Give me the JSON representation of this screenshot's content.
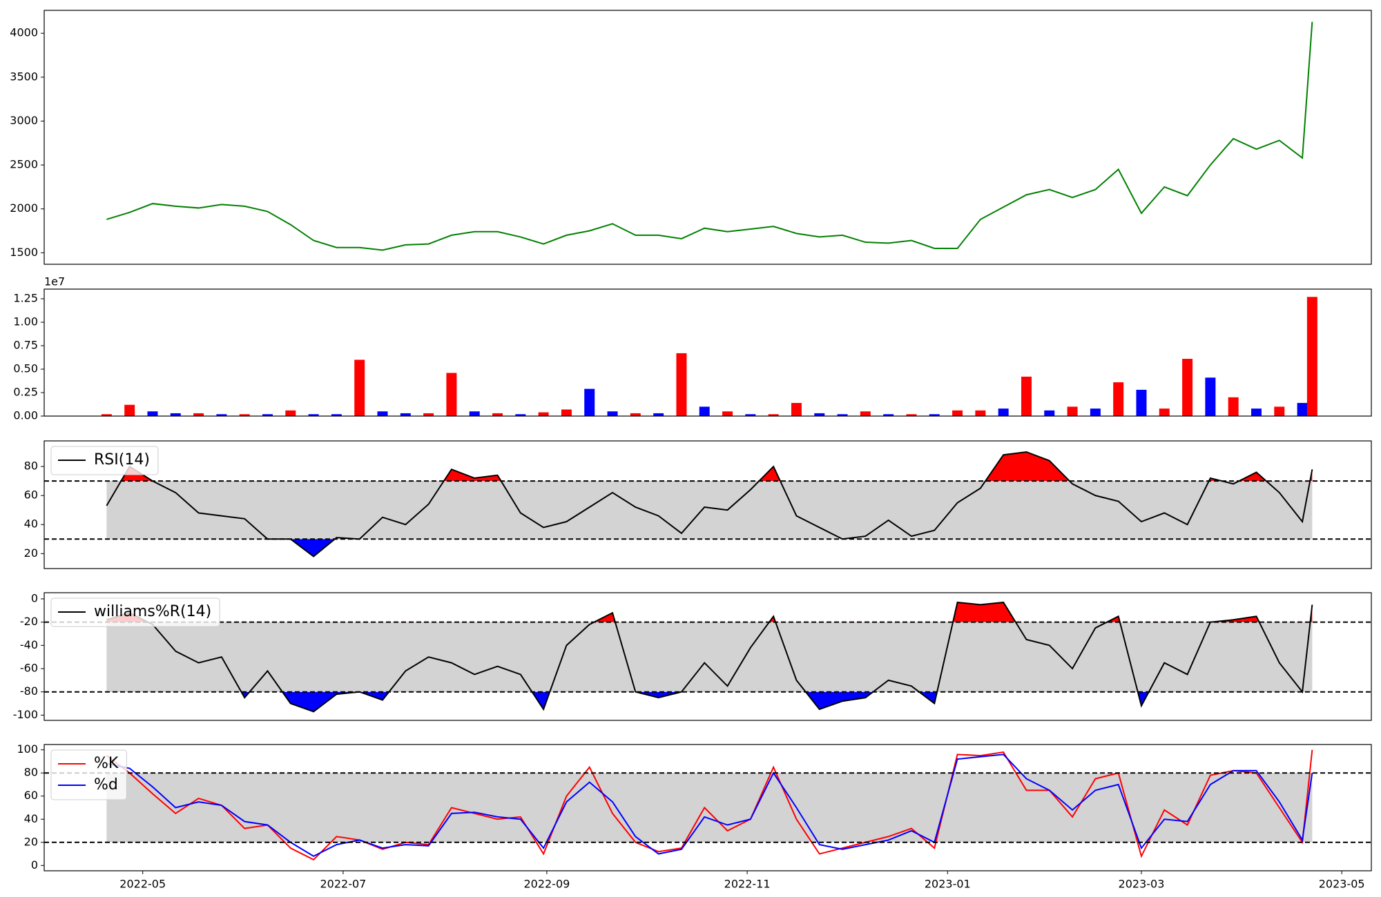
{
  "chart_data": [
    {
      "type": "line",
      "xlim": [
        0,
        404
      ],
      "ylim": [
        1369,
        4261
      ],
      "yticks": [
        1500,
        2000,
        2500,
        3000,
        3500,
        4000
      ],
      "x": [
        19,
        26,
        33,
        40,
        47,
        54,
        61,
        68,
        75,
        82,
        89,
        96,
        103,
        110,
        117,
        124,
        131,
        138,
        145,
        152,
        159,
        166,
        173,
        180,
        187,
        194,
        201,
        208,
        215,
        222,
        229,
        236,
        243,
        250,
        257,
        264,
        271,
        278,
        285,
        292,
        299,
        306,
        313,
        320,
        327,
        334,
        341,
        348,
        355,
        362,
        369,
        376,
        383,
        386
      ],
      "series": [
        {
          "color": "#008000",
          "values": [
            1880,
            1960,
            2060,
            2030,
            2010,
            2050,
            2030,
            1970,
            1820,
            1640,
            1560,
            1560,
            1530,
            1590,
            1600,
            1700,
            1740,
            1740,
            1680,
            1600,
            1700,
            1750,
            1830,
            1700,
            1700,
            1660,
            1780,
            1740,
            1770,
            1800,
            1720,
            1680,
            1700,
            1620,
            1610,
            1640,
            1550,
            1550,
            1880,
            2020,
            2160,
            2220,
            2130,
            2220,
            2450,
            1950,
            2250,
            2150,
            2500,
            2800,
            2680,
            2780,
            2580,
            4130
          ]
        }
      ]
    },
    {
      "type": "bar",
      "xlim": [
        0,
        404
      ],
      "ylim": [
        0,
        1.353
      ],
      "offset_label": "1e7",
      "yticks": [
        {
          "value": 0,
          "label": "0.00"
        },
        {
          "value": 0.25,
          "label": "0.25"
        },
        {
          "value": 0.5,
          "label": "0.50"
        },
        {
          "value": 0.75,
          "label": "0.75"
        },
        {
          "value": 1,
          "label": "1.00"
        },
        {
          "value": 1.25,
          "label": "1.25"
        }
      ],
      "x": [
        19,
        26,
        33,
        40,
        47,
        54,
        61,
        68,
        75,
        82,
        89,
        96,
        103,
        110,
        117,
        124,
        131,
        138,
        145,
        152,
        159,
        166,
        173,
        180,
        187,
        194,
        201,
        208,
        215,
        222,
        229,
        236,
        243,
        250,
        257,
        264,
        271,
        278,
        285,
        292,
        299,
        306,
        313,
        320,
        327,
        334,
        341,
        348,
        355,
        362,
        369,
        376,
        383,
        386
      ],
      "values": [
        0.02,
        0.12,
        0.05,
        0.03,
        0.03,
        0.02,
        0.02,
        0.02,
        0.06,
        0.02,
        0.02,
        0.6,
        0.05,
        0.03,
        0.03,
        0.46,
        0.05,
        0.03,
        0.02,
        0.04,
        0.07,
        0.29,
        0.05,
        0.03,
        0.03,
        0.67,
        0.1,
        0.05,
        0.02,
        0.02,
        0.14,
        0.03,
        0.02,
        0.05,
        0.02,
        0.02,
        0.02,
        0.06,
        0.06,
        0.08,
        0.42,
        0.06,
        0.1,
        0.08,
        0.36,
        0.28,
        0.08,
        0.61,
        0.41,
        0.2,
        0.08,
        0.1,
        0.14,
        1.27
      ],
      "colors": [
        "#ff0000",
        "#ff0000",
        "#0000ff",
        "#0000ff",
        "#ff0000",
        "#0000ff",
        "#ff0000",
        "#0000ff",
        "#ff0000",
        "#0000ff",
        "#0000ff",
        "#ff0000",
        "#0000ff",
        "#0000ff",
        "#ff0000",
        "#ff0000",
        "#0000ff",
        "#ff0000",
        "#0000ff",
        "#ff0000",
        "#ff0000",
        "#0000ff",
        "#0000ff",
        "#ff0000",
        "#0000ff",
        "#ff0000",
        "#0000ff",
        "#ff0000",
        "#0000ff",
        "#ff0000",
        "#ff0000",
        "#0000ff",
        "#0000ff",
        "#ff0000",
        "#0000ff",
        "#ff0000",
        "#0000ff",
        "#ff0000",
        "#ff0000",
        "#0000ff",
        "#ff0000",
        "#0000ff",
        "#ff0000",
        "#0000ff",
        "#ff0000",
        "#0000ff",
        "#ff0000",
        "#ff0000",
        "#0000ff",
        "#ff0000",
        "#0000ff",
        "#ff0000",
        "#0000ff",
        "#ff0000"
      ]
    },
    {
      "type": "line",
      "xlim": [
        0,
        404
      ],
      "ylim": [
        9.7,
        97.6
      ],
      "yticks": [
        20,
        40,
        60,
        80
      ],
      "hlines": [
        70,
        30
      ],
      "band_color": "#d3d3d3",
      "above_color": "#ff0000",
      "below_color": "#0000ff",
      "x": [
        19,
        26,
        33,
        40,
        47,
        54,
        61,
        68,
        75,
        82,
        89,
        96,
        103,
        110,
        117,
        124,
        131,
        138,
        145,
        152,
        159,
        166,
        173,
        180,
        187,
        194,
        201,
        208,
        215,
        222,
        229,
        236,
        243,
        250,
        257,
        264,
        271,
        278,
        285,
        292,
        299,
        306,
        313,
        320,
        327,
        334,
        341,
        348,
        355,
        362,
        369,
        376,
        383,
        386
      ],
      "series": [
        {
          "name": "RSI(14)",
          "color": "#000000",
          "values": [
            53,
            80,
            70,
            62,
            48,
            46,
            44,
            30,
            30,
            18,
            31,
            30,
            45,
            40,
            54,
            78,
            72,
            74,
            48,
            38,
            42,
            52,
            62,
            52,
            46,
            34,
            52,
            50,
            64,
            80,
            46,
            38,
            30,
            32,
            43,
            32,
            36,
            55,
            65,
            88,
            90,
            84,
            68,
            60,
            56,
            42,
            48,
            40,
            72,
            68,
            76,
            62,
            42,
            78
          ]
        }
      ]
    },
    {
      "type": "line",
      "xlim": [
        0,
        404
      ],
      "ylim": [
        -104.5,
        5.3
      ],
      "yticks": [
        -100,
        -80,
        -60,
        -40,
        -20,
        0
      ],
      "hlines": [
        -20,
        -80
      ],
      "band_color": "#d3d3d3",
      "above_color": "#ff0000",
      "below_color": "#0000ff",
      "x": [
        19,
        26,
        33,
        40,
        47,
        54,
        61,
        68,
        75,
        82,
        89,
        96,
        103,
        110,
        117,
        124,
        131,
        138,
        145,
        152,
        159,
        166,
        173,
        180,
        187,
        194,
        201,
        208,
        215,
        222,
        229,
        236,
        243,
        250,
        257,
        264,
        271,
        278,
        285,
        292,
        299,
        306,
        313,
        320,
        327,
        334,
        341,
        348,
        355,
        362,
        369,
        376,
        383,
        386
      ],
      "series": [
        {
          "name": "williams%R(14)",
          "color": "#000000",
          "values": [
            -18,
            -12,
            -22,
            -45,
            -55,
            -50,
            -85,
            -62,
            -90,
            -97,
            -82,
            -80,
            -87,
            -62,
            -50,
            -55,
            -65,
            -58,
            -65,
            -95,
            -40,
            -22,
            -12,
            -80,
            -85,
            -80,
            -55,
            -75,
            -42,
            -15,
            -70,
            -95,
            -88,
            -85,
            -70,
            -75,
            -90,
            -3,
            -5,
            -3,
            -35,
            -40,
            -60,
            -25,
            -15,
            -92,
            -55,
            -65,
            -20,
            -18,
            -15,
            -55,
            -80,
            -5
          ]
        }
      ]
    },
    {
      "type": "line",
      "xlim": [
        0,
        404
      ],
      "ylim": [
        -4.6,
        104.6
      ],
      "yticks": [
        0,
        20,
        40,
        60,
        80,
        100
      ],
      "hlines": [
        80,
        20
      ],
      "band_color": "#d3d3d3",
      "xticks": [
        {
          "value": 30,
          "label": "2022-05"
        },
        {
          "value": 91,
          "label": "2022-07"
        },
        {
          "value": 153,
          "label": "2022-09"
        },
        {
          "value": 214,
          "label": "2022-11"
        },
        {
          "value": 275,
          "label": "2023-01"
        },
        {
          "value": 334,
          "label": "2023-03"
        },
        {
          "value": 395,
          "label": "2023-05"
        }
      ],
      "x": [
        19,
        26,
        33,
        40,
        47,
        54,
        61,
        68,
        75,
        82,
        89,
        96,
        103,
        110,
        117,
        124,
        131,
        138,
        145,
        152,
        159,
        166,
        173,
        180,
        187,
        194,
        201,
        208,
        215,
        222,
        229,
        236,
        243,
        250,
        257,
        264,
        271,
        278,
        285,
        292,
        299,
        306,
        313,
        320,
        327,
        334,
        341,
        348,
        355,
        362,
        369,
        376,
        383,
        386
      ],
      "series": [
        {
          "name": "%K",
          "color": "#ff0000",
          "values": [
            95,
            80,
            62,
            45,
            58,
            52,
            32,
            35,
            15,
            5,
            25,
            22,
            14,
            20,
            18,
            50,
            45,
            40,
            42,
            10,
            60,
            85,
            45,
            20,
            12,
            15,
            50,
            30,
            40,
            85,
            40,
            10,
            15,
            20,
            25,
            32,
            15,
            96,
            95,
            98,
            65,
            65,
            42,
            75,
            80,
            8,
            48,
            35,
            78,
            82,
            80,
            50,
            20,
            100
          ]
        },
        {
          "name": "%d",
          "color": "#0000ff",
          "values": [
            88,
            84,
            68,
            50,
            55,
            52,
            38,
            35,
            20,
            8,
            18,
            22,
            15,
            18,
            17,
            45,
            46,
            42,
            40,
            15,
            55,
            72,
            55,
            25,
            10,
            14,
            42,
            35,
            40,
            80,
            50,
            18,
            14,
            18,
            22,
            30,
            20,
            92,
            94,
            96,
            75,
            65,
            48,
            65,
            70,
            15,
            40,
            38,
            70,
            82,
            82,
            55,
            22,
            80
          ]
        }
      ]
    }
  ]
}
